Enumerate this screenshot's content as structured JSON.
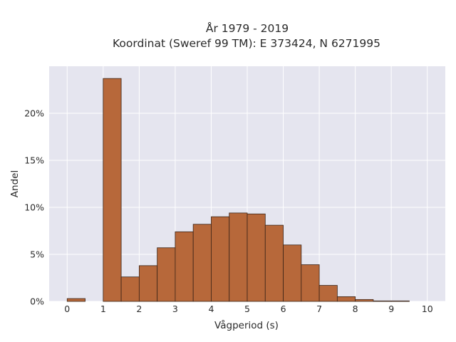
{
  "chart_data": {
    "type": "bar",
    "title": "År 1979 - 2019",
    "subtitle": "Koordinat (Sweref 99 TM): E 373424, N 6271995",
    "xlabel": "Vågperiod (s)",
    "ylabel": "Andel",
    "bin_width": 0.5,
    "bin_starts": [
      0,
      0.5,
      1,
      1.5,
      2,
      2.5,
      3,
      3.5,
      4,
      4.5,
      5,
      5.5,
      6,
      6.5,
      7,
      7.5,
      8,
      8.5,
      9,
      9.5
    ],
    "values": [
      0.3,
      0,
      23.7,
      2.6,
      3.8,
      5.7,
      7.4,
      8.2,
      9.0,
      9.4,
      9.3,
      8.1,
      6.0,
      3.9,
      1.7,
      0.5,
      0.2,
      0.05,
      0.05,
      0
    ],
    "x_ticks": [
      "0",
      "1",
      "2",
      "3",
      "4",
      "5",
      "6",
      "7",
      "8",
      "9",
      "10"
    ],
    "y_ticks": [
      "0%",
      "5%",
      "10%",
      "15%",
      "20%"
    ],
    "xlim": [
      -0.5,
      10.5
    ],
    "ylim": [
      0,
      25
    ],
    "grid": true,
    "colors": {
      "bar_fill": "#b7683a",
      "bar_edge": "#3a2418",
      "plot_background": "#e5e5ef",
      "grid": "#ffffff"
    }
  }
}
